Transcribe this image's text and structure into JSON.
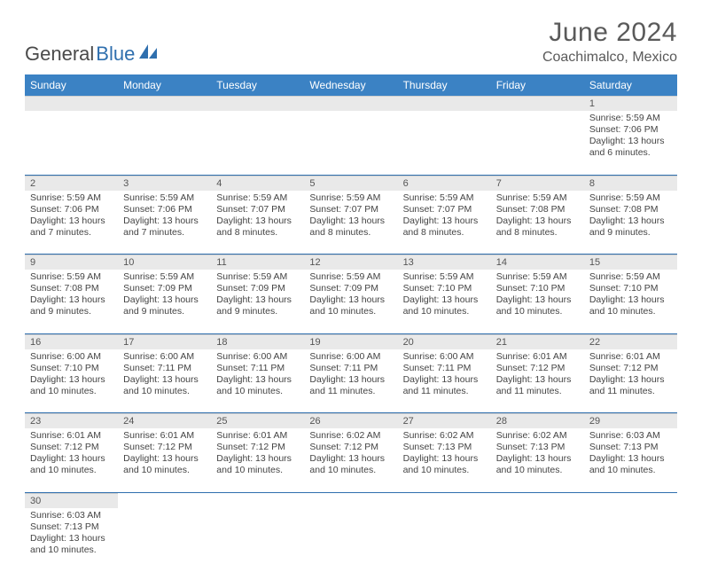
{
  "brand": {
    "part1": "General",
    "part2": "Blue",
    "logo_color": "#2f6fae"
  },
  "title": "June 2024",
  "location": "Coachimalco, Mexico",
  "colors": {
    "header_bg": "#3b82c4",
    "header_text": "#ffffff",
    "daynum_bg": "#e9e9e9",
    "rule": "#2f6fae"
  },
  "weekdays": [
    "Sunday",
    "Monday",
    "Tuesday",
    "Wednesday",
    "Thursday",
    "Friday",
    "Saturday"
  ],
  "weeks": [
    [
      null,
      null,
      null,
      null,
      null,
      null,
      {
        "n": "1",
        "sr": "Sunrise: 5:59 AM",
        "ss": "Sunset: 7:06 PM",
        "d1": "Daylight: 13 hours",
        "d2": "and 6 minutes."
      }
    ],
    [
      {
        "n": "2",
        "sr": "Sunrise: 5:59 AM",
        "ss": "Sunset: 7:06 PM",
        "d1": "Daylight: 13 hours",
        "d2": "and 7 minutes."
      },
      {
        "n": "3",
        "sr": "Sunrise: 5:59 AM",
        "ss": "Sunset: 7:06 PM",
        "d1": "Daylight: 13 hours",
        "d2": "and 7 minutes."
      },
      {
        "n": "4",
        "sr": "Sunrise: 5:59 AM",
        "ss": "Sunset: 7:07 PM",
        "d1": "Daylight: 13 hours",
        "d2": "and 8 minutes."
      },
      {
        "n": "5",
        "sr": "Sunrise: 5:59 AM",
        "ss": "Sunset: 7:07 PM",
        "d1": "Daylight: 13 hours",
        "d2": "and 8 minutes."
      },
      {
        "n": "6",
        "sr": "Sunrise: 5:59 AM",
        "ss": "Sunset: 7:07 PM",
        "d1": "Daylight: 13 hours",
        "d2": "and 8 minutes."
      },
      {
        "n": "7",
        "sr": "Sunrise: 5:59 AM",
        "ss": "Sunset: 7:08 PM",
        "d1": "Daylight: 13 hours",
        "d2": "and 8 minutes."
      },
      {
        "n": "8",
        "sr": "Sunrise: 5:59 AM",
        "ss": "Sunset: 7:08 PM",
        "d1": "Daylight: 13 hours",
        "d2": "and 9 minutes."
      }
    ],
    [
      {
        "n": "9",
        "sr": "Sunrise: 5:59 AM",
        "ss": "Sunset: 7:08 PM",
        "d1": "Daylight: 13 hours",
        "d2": "and 9 minutes."
      },
      {
        "n": "10",
        "sr": "Sunrise: 5:59 AM",
        "ss": "Sunset: 7:09 PM",
        "d1": "Daylight: 13 hours",
        "d2": "and 9 minutes."
      },
      {
        "n": "11",
        "sr": "Sunrise: 5:59 AM",
        "ss": "Sunset: 7:09 PM",
        "d1": "Daylight: 13 hours",
        "d2": "and 9 minutes."
      },
      {
        "n": "12",
        "sr": "Sunrise: 5:59 AM",
        "ss": "Sunset: 7:09 PM",
        "d1": "Daylight: 13 hours",
        "d2": "and 10 minutes."
      },
      {
        "n": "13",
        "sr": "Sunrise: 5:59 AM",
        "ss": "Sunset: 7:10 PM",
        "d1": "Daylight: 13 hours",
        "d2": "and 10 minutes."
      },
      {
        "n": "14",
        "sr": "Sunrise: 5:59 AM",
        "ss": "Sunset: 7:10 PM",
        "d1": "Daylight: 13 hours",
        "d2": "and 10 minutes."
      },
      {
        "n": "15",
        "sr": "Sunrise: 5:59 AM",
        "ss": "Sunset: 7:10 PM",
        "d1": "Daylight: 13 hours",
        "d2": "and 10 minutes."
      }
    ],
    [
      {
        "n": "16",
        "sr": "Sunrise: 6:00 AM",
        "ss": "Sunset: 7:10 PM",
        "d1": "Daylight: 13 hours",
        "d2": "and 10 minutes."
      },
      {
        "n": "17",
        "sr": "Sunrise: 6:00 AM",
        "ss": "Sunset: 7:11 PM",
        "d1": "Daylight: 13 hours",
        "d2": "and 10 minutes."
      },
      {
        "n": "18",
        "sr": "Sunrise: 6:00 AM",
        "ss": "Sunset: 7:11 PM",
        "d1": "Daylight: 13 hours",
        "d2": "and 10 minutes."
      },
      {
        "n": "19",
        "sr": "Sunrise: 6:00 AM",
        "ss": "Sunset: 7:11 PM",
        "d1": "Daylight: 13 hours",
        "d2": "and 11 minutes."
      },
      {
        "n": "20",
        "sr": "Sunrise: 6:00 AM",
        "ss": "Sunset: 7:11 PM",
        "d1": "Daylight: 13 hours",
        "d2": "and 11 minutes."
      },
      {
        "n": "21",
        "sr": "Sunrise: 6:01 AM",
        "ss": "Sunset: 7:12 PM",
        "d1": "Daylight: 13 hours",
        "d2": "and 11 minutes."
      },
      {
        "n": "22",
        "sr": "Sunrise: 6:01 AM",
        "ss": "Sunset: 7:12 PM",
        "d1": "Daylight: 13 hours",
        "d2": "and 11 minutes."
      }
    ],
    [
      {
        "n": "23",
        "sr": "Sunrise: 6:01 AM",
        "ss": "Sunset: 7:12 PM",
        "d1": "Daylight: 13 hours",
        "d2": "and 10 minutes."
      },
      {
        "n": "24",
        "sr": "Sunrise: 6:01 AM",
        "ss": "Sunset: 7:12 PM",
        "d1": "Daylight: 13 hours",
        "d2": "and 10 minutes."
      },
      {
        "n": "25",
        "sr": "Sunrise: 6:01 AM",
        "ss": "Sunset: 7:12 PM",
        "d1": "Daylight: 13 hours",
        "d2": "and 10 minutes."
      },
      {
        "n": "26",
        "sr": "Sunrise: 6:02 AM",
        "ss": "Sunset: 7:12 PM",
        "d1": "Daylight: 13 hours",
        "d2": "and 10 minutes."
      },
      {
        "n": "27",
        "sr": "Sunrise: 6:02 AM",
        "ss": "Sunset: 7:13 PM",
        "d1": "Daylight: 13 hours",
        "d2": "and 10 minutes."
      },
      {
        "n": "28",
        "sr": "Sunrise: 6:02 AM",
        "ss": "Sunset: 7:13 PM",
        "d1": "Daylight: 13 hours",
        "d2": "and 10 minutes."
      },
      {
        "n": "29",
        "sr": "Sunrise: 6:03 AM",
        "ss": "Sunset: 7:13 PM",
        "d1": "Daylight: 13 hours",
        "d2": "and 10 minutes."
      }
    ],
    [
      {
        "n": "30",
        "sr": "Sunrise: 6:03 AM",
        "ss": "Sunset: 7:13 PM",
        "d1": "Daylight: 13 hours",
        "d2": "and 10 minutes."
      },
      null,
      null,
      null,
      null,
      null,
      null
    ]
  ]
}
